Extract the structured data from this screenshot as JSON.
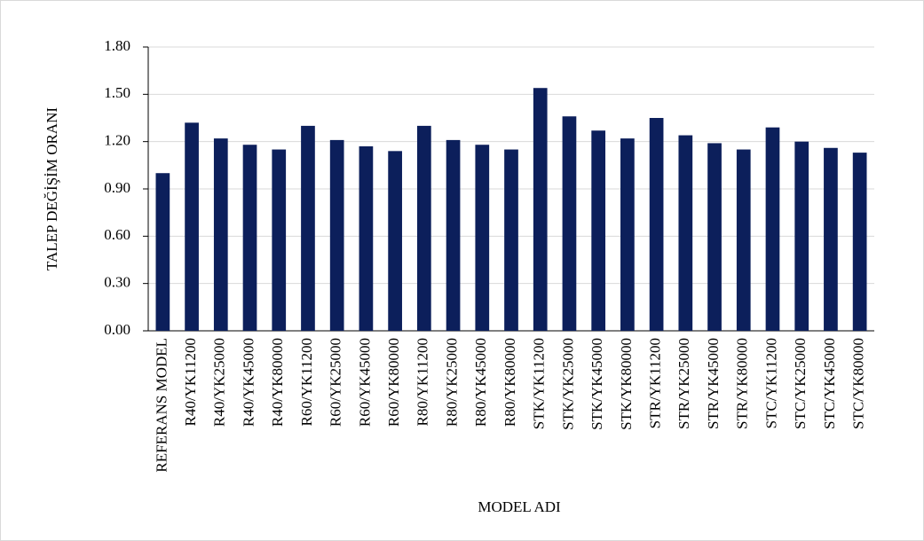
{
  "chart_data": {
    "type": "bar",
    "x_label": "MODEL ADI",
    "y_label": "TALEP DEĞİŞİM ORANI",
    "categories": [
      "REFERANS MODEL",
      "R40/YK11200",
      "R40/YK25000",
      "R40/YK45000",
      "R40/YK80000",
      "R60/YK11200",
      "R60/YK25000",
      "R60/YK45000",
      "R60/YK80000",
      "R80/YK11200",
      "R80/YK25000",
      "R80/YK45000",
      "R80/YK80000",
      "STK/YK11200",
      "STK/YK25000",
      "STK/YK45000",
      "STK/YK80000",
      "STR/YK11200",
      "STR/YK25000",
      "STR/YK45000",
      "STR/YK80000",
      "STC/YK11200",
      "STC/YK25000",
      "STC/YK45000",
      "STC/YK80000"
    ],
    "values": [
      1.0,
      1.32,
      1.22,
      1.18,
      1.15,
      1.3,
      1.21,
      1.17,
      1.14,
      1.3,
      1.21,
      1.18,
      1.15,
      1.54,
      1.36,
      1.27,
      1.22,
      1.35,
      1.24,
      1.19,
      1.15,
      1.29,
      1.2,
      1.16,
      1.13
    ],
    "color": "#0c1f5b",
    "ylim": [
      0,
      1.8
    ],
    "yticks": [
      {
        "value": 0,
        "label": "0.00"
      },
      {
        "value": 0.3,
        "label": "0.30"
      },
      {
        "value": 0.6,
        "label": "0.60"
      },
      {
        "value": 0.9,
        "label": "0.90"
      },
      {
        "value": 1.2,
        "label": "1.20"
      },
      {
        "value": 1.5,
        "label": "1.50"
      },
      {
        "value": 1.8,
        "label": "1.80"
      }
    ],
    "grid": true
  }
}
